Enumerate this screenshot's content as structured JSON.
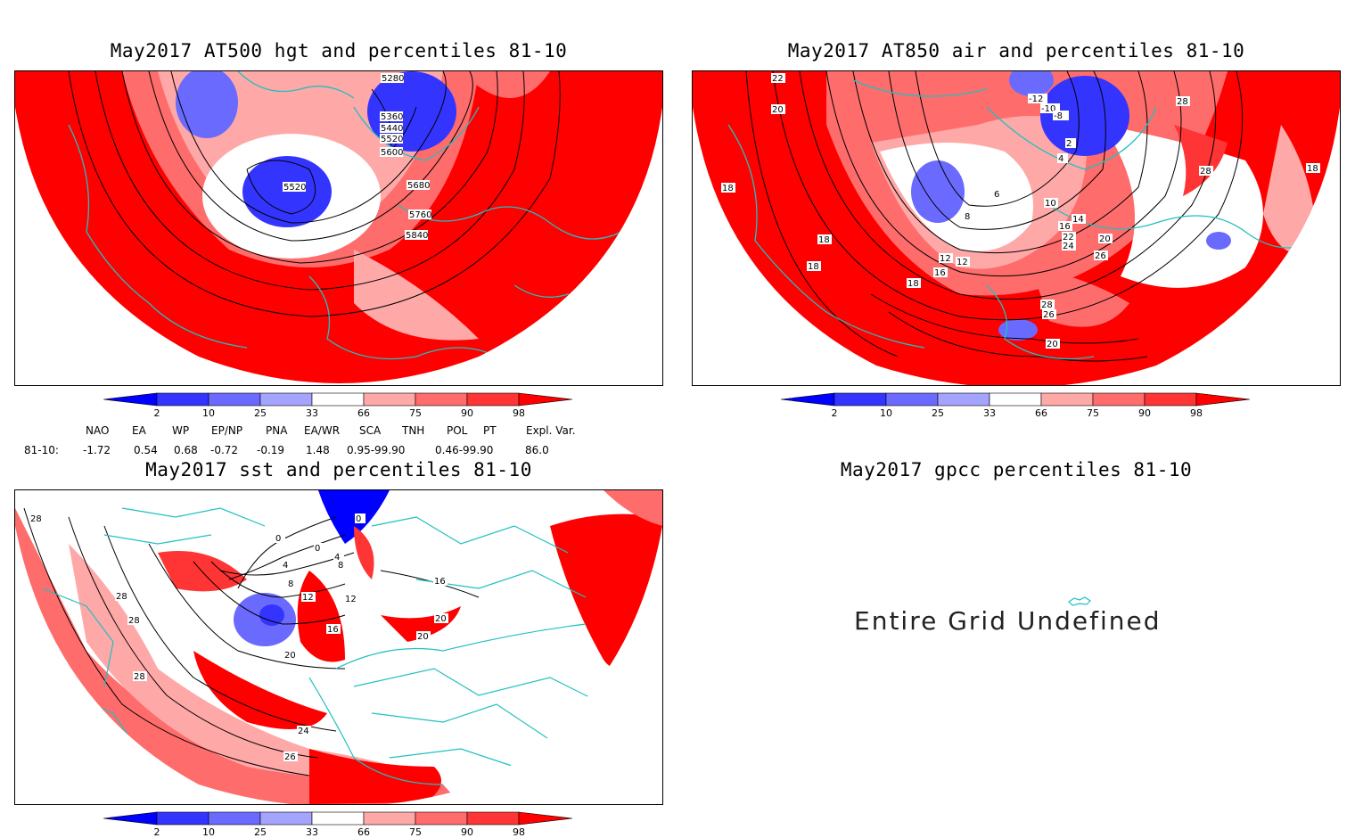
{
  "panels": {
    "hgt": {
      "title": "May2017 AT500 hgt and percentiles 81-10",
      "contour_labels": [
        "5280",
        "5360",
        "5440",
        "5520",
        "5600",
        "5680",
        "5760",
        "5840",
        "5520"
      ]
    },
    "air": {
      "title": "May2017 AT850 air and percentiles 81-10",
      "contour_labels": [
        "22",
        "20",
        "18",
        "18",
        "18",
        "18",
        "16",
        "16",
        "14",
        "12",
        "12",
        "10",
        "8",
        "6",
        "4",
        "2",
        "20",
        "22",
        "24",
        "26",
        "26",
        "28",
        "28",
        "28",
        "18",
        "20",
        "-12",
        "-10",
        "-8"
      ]
    },
    "sst": {
      "title": "May2017 sst and percentiles 81-10",
      "contour_labels": [
        "28",
        "28",
        "28",
        "28",
        "24",
        "26",
        "20",
        "16",
        "12",
        "12",
        "8",
        "8",
        "4",
        "4",
        "0",
        "0",
        "0",
        "16",
        "20",
        "20"
      ]
    },
    "gpcc": {
      "title": "May2017 gpcc percentiles 81-10",
      "message": "Entire Grid Undefined"
    }
  },
  "colorbar": {
    "labels": [
      "2",
      "10",
      "25",
      "33",
      "66",
      "75",
      "90",
      "98"
    ],
    "colors": [
      "#0000ff",
      "#3434ff",
      "#6a6aff",
      "#a4a4ff",
      "#ffffff",
      "#ffa8a8",
      "#ff6c6c",
      "#ff3434",
      "#ff0000"
    ]
  },
  "indices": {
    "headers": [
      "NAO",
      "EA",
      "WP",
      "EP/NP",
      "PNA",
      "EA/WR",
      "SCA",
      "TNH",
      "POL",
      "PT",
      "Expl. Var."
    ],
    "row_label": "81-10:",
    "values": [
      "-1.72",
      "0.54",
      "0.68",
      "-0.72",
      "-0.19",
      "1.48",
      "0.95-99.90",
      "0.46-99.90",
      "86.0"
    ]
  }
}
